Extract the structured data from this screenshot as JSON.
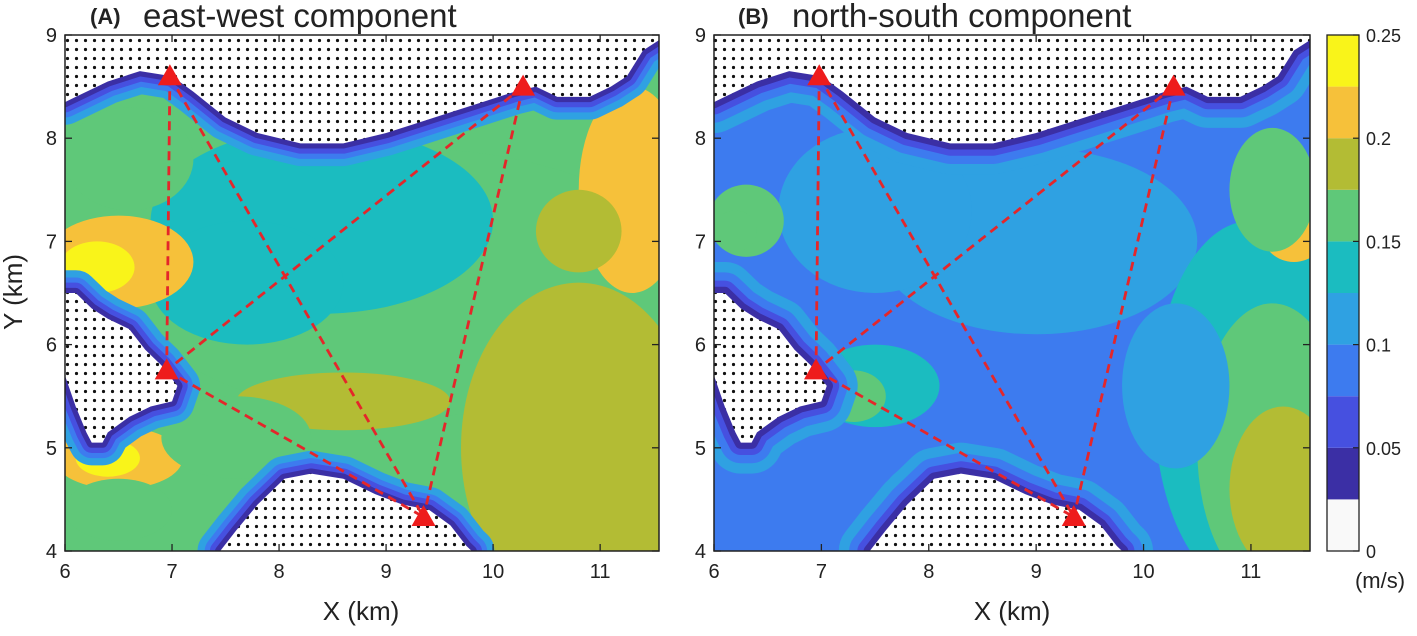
{
  "chart_data": {
    "type": "heatmap",
    "colorbar": {
      "ticks": [
        "0",
        "0.05",
        "0.1",
        "0.15",
        "0.2",
        "0.25"
      ],
      "unit": "(m/s)",
      "range": [
        0,
        0.25
      ],
      "levels": [
        {
          "from": 0.0,
          "to": 0.025,
          "color": "#f9f9f9"
        },
        {
          "from": 0.025,
          "to": 0.05,
          "color": "#3b2fa5"
        },
        {
          "from": 0.05,
          "to": 0.075,
          "color": "#4650e0"
        },
        {
          "from": 0.075,
          "to": 0.1,
          "color": "#3d7bef"
        },
        {
          "from": 0.1,
          "to": 0.125,
          "color": "#2fa1e2"
        },
        {
          "from": 0.125,
          "to": 0.15,
          "color": "#1bbcc0"
        },
        {
          "from": 0.15,
          "to": 0.175,
          "color": "#5fc879"
        },
        {
          "from": 0.175,
          "to": 0.2,
          "color": "#b3bc34"
        },
        {
          "from": 0.2,
          "to": 0.225,
          "color": "#f6c13a"
        },
        {
          "from": 0.225,
          "to": 0.25,
          "color": "#f9f41a"
        }
      ]
    },
    "panels": [
      {
        "letter": "(A)",
        "title": "east-west component",
        "xlabel": "X (km)",
        "ylabel": "Y (km)",
        "xlim": [
          6,
          11.55
        ],
        "ylim": [
          4,
          9
        ],
        "xticks": [
          "6",
          "7",
          "8",
          "9",
          "10",
          "11"
        ],
        "yticks": [
          "4",
          "5",
          "6",
          "7",
          "8",
          "9"
        ],
        "background_speed": 0.15,
        "regions": [
          {
            "x": 9.2,
            "y": 6.6,
            "rx": 2.6,
            "ry": 1.3,
            "speed": 0.16
          },
          {
            "x": 10.8,
            "y": 5.0,
            "rx": 1.1,
            "ry": 1.6,
            "speed": 0.18
          },
          {
            "x": 11.3,
            "y": 7.5,
            "rx": 0.5,
            "ry": 1.0,
            "speed": 0.2
          },
          {
            "x": 10.8,
            "y": 7.1,
            "rx": 0.4,
            "ry": 0.4,
            "speed": 0.19
          },
          {
            "x": 8.4,
            "y": 7.2,
            "rx": 1.6,
            "ry": 0.9,
            "speed": 0.13
          },
          {
            "x": 7.7,
            "y": 6.6,
            "rx": 0.9,
            "ry": 0.6,
            "speed": 0.14
          },
          {
            "x": 6.6,
            "y": 7.8,
            "rx": 0.6,
            "ry": 0.5,
            "speed": 0.16
          },
          {
            "x": 6.5,
            "y": 6.8,
            "rx": 0.7,
            "ry": 0.45,
            "speed": 0.2
          },
          {
            "x": 6.3,
            "y": 6.75,
            "rx": 0.35,
            "ry": 0.25,
            "speed": 0.23
          },
          {
            "x": 6.2,
            "y": 6.75,
            "rx": 0.18,
            "ry": 0.15,
            "speed": 0.245
          },
          {
            "x": 8.6,
            "y": 5.45,
            "rx": 1.0,
            "ry": 0.28,
            "speed": 0.18
          },
          {
            "x": 6.5,
            "y": 4.9,
            "rx": 0.6,
            "ry": 0.3,
            "speed": 0.22
          },
          {
            "x": 6.4,
            "y": 4.9,
            "rx": 0.3,
            "ry": 0.18,
            "speed": 0.24
          },
          {
            "x": 8.1,
            "y": 4.85,
            "rx": 0.2,
            "ry": 0.12,
            "speed": 0.21
          },
          {
            "x": 7.6,
            "y": 5.1,
            "rx": 0.7,
            "ry": 0.4,
            "speed": 0.17
          },
          {
            "x": 6.5,
            "y": 4.4,
            "rx": 0.5,
            "ry": 0.3,
            "speed": 0.17
          }
        ],
        "shore_speeds": [
          0.03,
          0.06,
          0.09,
          0.12
        ],
        "shore_widths": [
          0.05,
          0.1,
          0.15,
          0.22
        ]
      },
      {
        "letter": "(B)",
        "title": "north-south component",
        "xlabel": "X (km)",
        "ylabel": "",
        "xlim": [
          6,
          11.55
        ],
        "ylim": [
          4,
          9
        ],
        "xticks": [
          "6",
          "7",
          "8",
          "9",
          "10",
          "11"
        ],
        "yticks": [
          "4",
          "5",
          "6",
          "7",
          "8",
          "9"
        ],
        "background_speed": 0.09,
        "regions": [
          {
            "x": 9.0,
            "y": 7.0,
            "rx": 1.5,
            "ry": 0.9,
            "speed": 0.11
          },
          {
            "x": 7.5,
            "y": 7.3,
            "rx": 0.9,
            "ry": 0.8,
            "speed": 0.12
          },
          {
            "x": 6.3,
            "y": 7.2,
            "rx": 0.35,
            "ry": 0.35,
            "speed": 0.15
          },
          {
            "x": 6.2,
            "y": 7.1,
            "rx": 0.2,
            "ry": 0.2,
            "speed": 0.17
          },
          {
            "x": 11.0,
            "y": 5.4,
            "rx": 0.9,
            "ry": 1.8,
            "speed": 0.14
          },
          {
            "x": 11.2,
            "y": 5.0,
            "rx": 0.7,
            "ry": 1.4,
            "speed": 0.16
          },
          {
            "x": 11.3,
            "y": 4.6,
            "rx": 0.5,
            "ry": 0.8,
            "speed": 0.18
          },
          {
            "x": 11.4,
            "y": 7.1,
            "rx": 0.3,
            "ry": 0.3,
            "speed": 0.2
          },
          {
            "x": 11.2,
            "y": 7.5,
            "rx": 0.4,
            "ry": 0.6,
            "speed": 0.15
          },
          {
            "x": 7.5,
            "y": 5.6,
            "rx": 0.6,
            "ry": 0.4,
            "speed": 0.14
          },
          {
            "x": 7.3,
            "y": 5.5,
            "rx": 0.3,
            "ry": 0.25,
            "speed": 0.16
          },
          {
            "x": 6.2,
            "y": 5.4,
            "rx": 0.2,
            "ry": 0.35,
            "speed": 0.19
          },
          {
            "x": 6.25,
            "y": 4.95,
            "rx": 0.12,
            "ry": 0.15,
            "speed": 0.2
          },
          {
            "x": 8.2,
            "y": 4.6,
            "rx": 0.6,
            "ry": 0.3,
            "speed": 0.12
          },
          {
            "x": 10.3,
            "y": 5.6,
            "rx": 0.5,
            "ry": 0.8,
            "speed": 0.115
          }
        ],
        "shore_speeds": [
          0.03,
          0.055,
          0.075,
          0.1
        ],
        "shore_widths": [
          0.06,
          0.12,
          0.2,
          0.3
        ],
        "north_band": {
          "speed": 0.03,
          "width": 0.22
        }
      }
    ],
    "stations": [
      {
        "x": 6.98,
        "y": 8.6
      },
      {
        "x": 10.28,
        "y": 8.5
      },
      {
        "x": 6.95,
        "y": 5.75
      },
      {
        "x": 9.35,
        "y": 4.33
      }
    ],
    "paths": [
      [
        0,
        2
      ],
      [
        0,
        3
      ],
      [
        1,
        2
      ],
      [
        1,
        3
      ],
      [
        2,
        3
      ]
    ],
    "land": [
      {
        "name": "north",
        "points": [
          [
            6,
            9
          ],
          [
            11.55,
            9
          ],
          [
            11.55,
            8.95
          ],
          [
            11.4,
            8.85
          ],
          [
            11.25,
            8.6
          ],
          [
            11.1,
            8.5
          ],
          [
            10.9,
            8.4
          ],
          [
            10.6,
            8.4
          ],
          [
            10.4,
            8.5
          ],
          [
            10.2,
            8.45
          ],
          [
            9.9,
            8.35
          ],
          [
            9.6,
            8.25
          ],
          [
            9.3,
            8.15
          ],
          [
            9.0,
            8.05
          ],
          [
            8.6,
            7.95
          ],
          [
            8.2,
            7.95
          ],
          [
            7.8,
            8.05
          ],
          [
            7.5,
            8.2
          ],
          [
            7.2,
            8.45
          ],
          [
            7.0,
            8.6
          ],
          [
            6.7,
            8.65
          ],
          [
            6.4,
            8.55
          ],
          [
            6.1,
            8.4
          ],
          [
            6,
            8.35
          ]
        ]
      },
      {
        "name": "west",
        "points": [
          [
            6,
            6.5
          ],
          [
            6.1,
            6.5
          ],
          [
            6.25,
            6.35
          ],
          [
            6.4,
            6.25
          ],
          [
            6.6,
            6.15
          ],
          [
            6.75,
            5.95
          ],
          [
            6.9,
            5.8
          ],
          [
            7.05,
            5.6
          ],
          [
            7.0,
            5.45
          ],
          [
            6.8,
            5.4
          ],
          [
            6.6,
            5.3
          ],
          [
            6.4,
            5.15
          ],
          [
            6.35,
            5.05
          ],
          [
            6.25,
            5.05
          ],
          [
            6.2,
            5.15
          ],
          [
            6.1,
            5.4
          ],
          [
            6,
            5.7
          ]
        ]
      },
      {
        "name": "south",
        "points": [
          [
            7.45,
            4
          ],
          [
            7.6,
            4.2
          ],
          [
            7.8,
            4.45
          ],
          [
            8.05,
            4.7
          ],
          [
            8.3,
            4.75
          ],
          [
            8.6,
            4.7
          ],
          [
            8.9,
            4.55
          ],
          [
            9.15,
            4.45
          ],
          [
            9.4,
            4.4
          ],
          [
            9.6,
            4.25
          ],
          [
            9.75,
            4.05
          ],
          [
            9.8,
            4
          ]
        ]
      }
    ]
  }
}
